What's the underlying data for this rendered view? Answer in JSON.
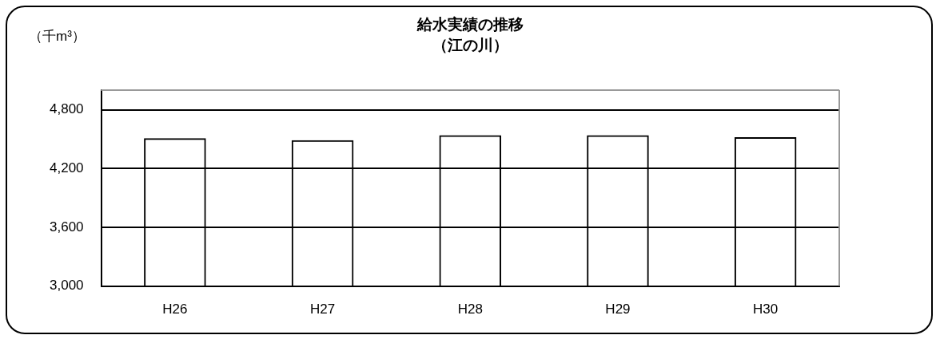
{
  "chart_data": {
    "type": "bar",
    "title": "給水実績の推移",
    "subtitle": "（江の川）",
    "ylabel": "（千m³）",
    "categories": [
      "H26",
      "H27",
      "H28",
      "H29",
      "H30"
    ],
    "values": [
      4510,
      4490,
      4540,
      4540,
      4520
    ],
    "color": "#000000",
    "ylim": [
      3000,
      5000
    ],
    "yticks": [
      {
        "value": 3000,
        "label": "3,000"
      },
      {
        "value": 3600,
        "label": "3,600"
      },
      {
        "value": 4200,
        "label": "4,200"
      },
      {
        "value": 4800,
        "label": "4,800"
      }
    ],
    "grid": "y",
    "legend": false
  }
}
